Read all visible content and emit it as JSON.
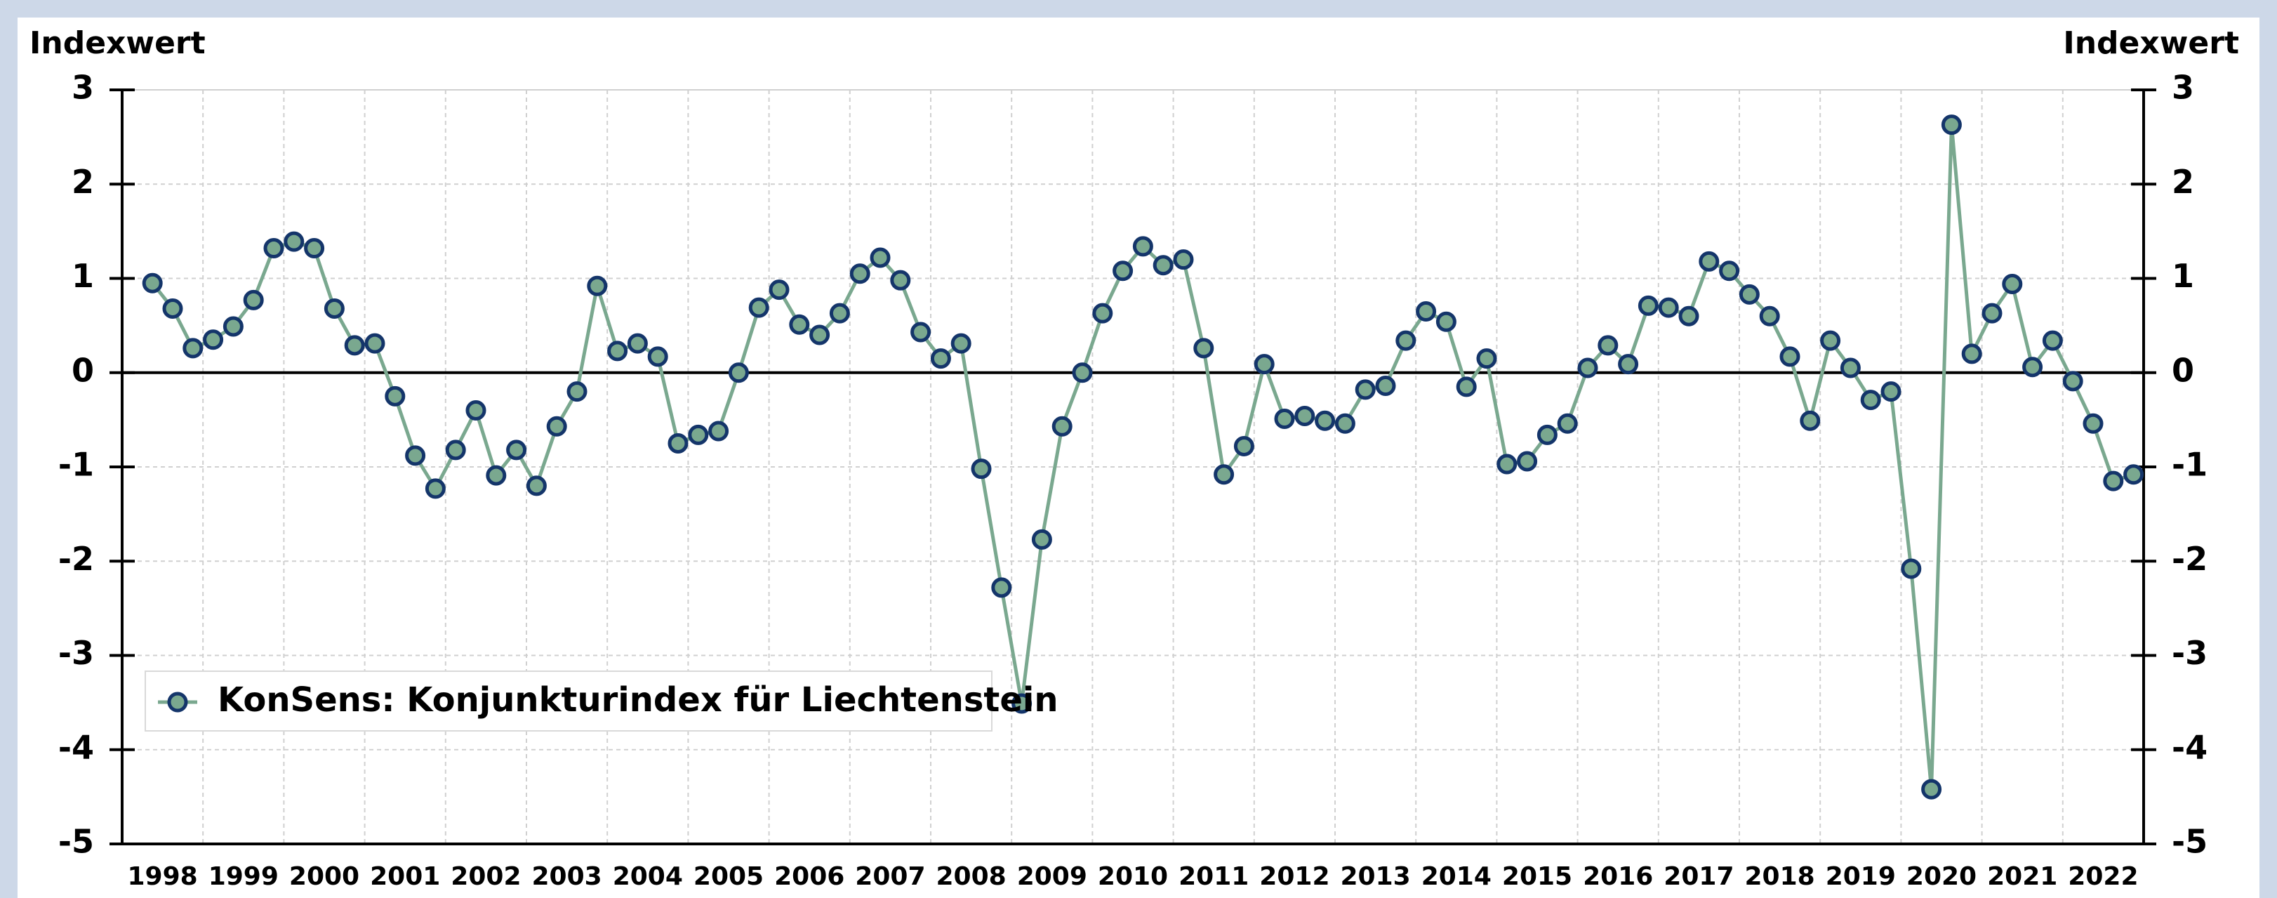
{
  "chart_data": {
    "type": "line",
    "y_label": "Indexwert",
    "y2_label": "Indexwert",
    "x": [
      1998.375,
      1998.625,
      1998.875,
      1999.125,
      1999.375,
      1999.625,
      1999.875,
      2000.125,
      2000.375,
      2000.625,
      2000.875,
      2001.125,
      2001.375,
      2001.625,
      2001.875,
      2002.125,
      2002.375,
      2002.625,
      2002.875,
      2003.125,
      2003.375,
      2003.625,
      2003.875,
      2004.125,
      2004.375,
      2004.625,
      2004.875,
      2005.125,
      2005.375,
      2005.625,
      2005.875,
      2006.125,
      2006.375,
      2006.625,
      2006.875,
      2007.125,
      2007.375,
      2007.625,
      2007.875,
      2008.125,
      2008.375,
      2008.625,
      2008.875,
      2009.125,
      2009.375,
      2009.625,
      2009.875,
      2010.125,
      2010.375,
      2010.625,
      2010.875,
      2011.125,
      2011.375,
      2011.625,
      2011.875,
      2012.125,
      2012.375,
      2012.625,
      2012.875,
      2013.125,
      2013.375,
      2013.625,
      2013.875,
      2014.125,
      2014.375,
      2014.625,
      2014.875,
      2015.125,
      2015.375,
      2015.625,
      2015.875,
      2016.125,
      2016.375,
      2016.625,
      2016.875,
      2017.125,
      2017.375,
      2017.625,
      2017.875,
      2018.125,
      2018.375,
      2018.625,
      2018.875,
      2019.125,
      2019.375,
      2019.625,
      2019.875,
      2020.125,
      2020.375,
      2020.625,
      2020.875,
      2021.125,
      2021.375,
      2021.625,
      2021.875,
      2022.125,
      2022.375,
      2022.625,
      2022.875
    ],
    "year_labels": [
      "1998",
      "1999",
      "2000",
      "2001",
      "2002",
      "2003",
      "2004",
      "2005",
      "2006",
      "2007",
      "2008",
      "2009",
      "2010",
      "2011",
      "2012",
      "2013",
      "2014",
      "2015",
      "2016",
      "2017",
      "2018",
      "2019",
      "2020",
      "2021",
      "2022"
    ],
    "series": [
      {
        "name": "KonSens: Konjunkturindex für Liechtenstein",
        "color": "#7aa88f",
        "marker_edge": "#14356a",
        "values": [
          0.95,
          0.68,
          0.26,
          0.35,
          0.49,
          0.77,
          1.32,
          1.39,
          1.32,
          0.68,
          0.29,
          0.31,
          -0.25,
          -0.88,
          -1.23,
          -0.82,
          -0.4,
          -1.09,
          -0.82,
          -1.2,
          -0.57,
          -0.2,
          0.92,
          0.23,
          0.31,
          0.17,
          -0.75,
          -0.66,
          -0.62,
          0,
          0.69,
          0.88,
          0.51,
          0.4,
          0.63,
          1.05,
          1.22,
          0.98,
          0.43,
          0.15,
          0.31,
          -1.02,
          -2.28,
          -3.51,
          -1.77,
          -0.57,
          0,
          0.63,
          1.08,
          1.34,
          1.14,
          1.2,
          0.26,
          -1.08,
          -0.78,
          0.09,
          -0.49,
          -0.46,
          -0.51,
          -0.54,
          -0.18,
          -0.14,
          0.34,
          0.65,
          0.54,
          -0.15,
          0.15,
          -0.97,
          -0.94,
          -0.66,
          -0.54,
          0.05,
          0.29,
          0.09,
          0.71,
          0.69,
          0.6,
          1.18,
          1.08,
          0.83,
          0.6,
          0.17,
          -0.51,
          0.34,
          0.05,
          -0.29,
          -0.2,
          -2.08,
          -4.42,
          2.63,
          0.2,
          0.63,
          0.94,
          0.06,
          0.34,
          -0.09,
          -0.54,
          -1.15,
          -1.08
        ]
      }
    ],
    "xlim": [
      1998,
      2023
    ],
    "xticks": [
      1999,
      2000,
      2001,
      2002,
      2003,
      2004,
      2005,
      2006,
      2007,
      2008,
      2009,
      2010,
      2011,
      2012,
      2013,
      2014,
      2015,
      2016,
      2017,
      2018,
      2019,
      2020,
      2021,
      2022
    ],
    "ylim": [
      -5,
      3
    ],
    "yticks": [
      -5,
      -4,
      -3,
      -2,
      -1,
      0,
      1,
      2,
      3
    ],
    "y2lim": [
      -5,
      3
    ],
    "y2ticks": [
      -5,
      -4,
      -3,
      -2,
      -1,
      0,
      1,
      2,
      3
    ],
    "grid": true,
    "legend": "lower left"
  }
}
